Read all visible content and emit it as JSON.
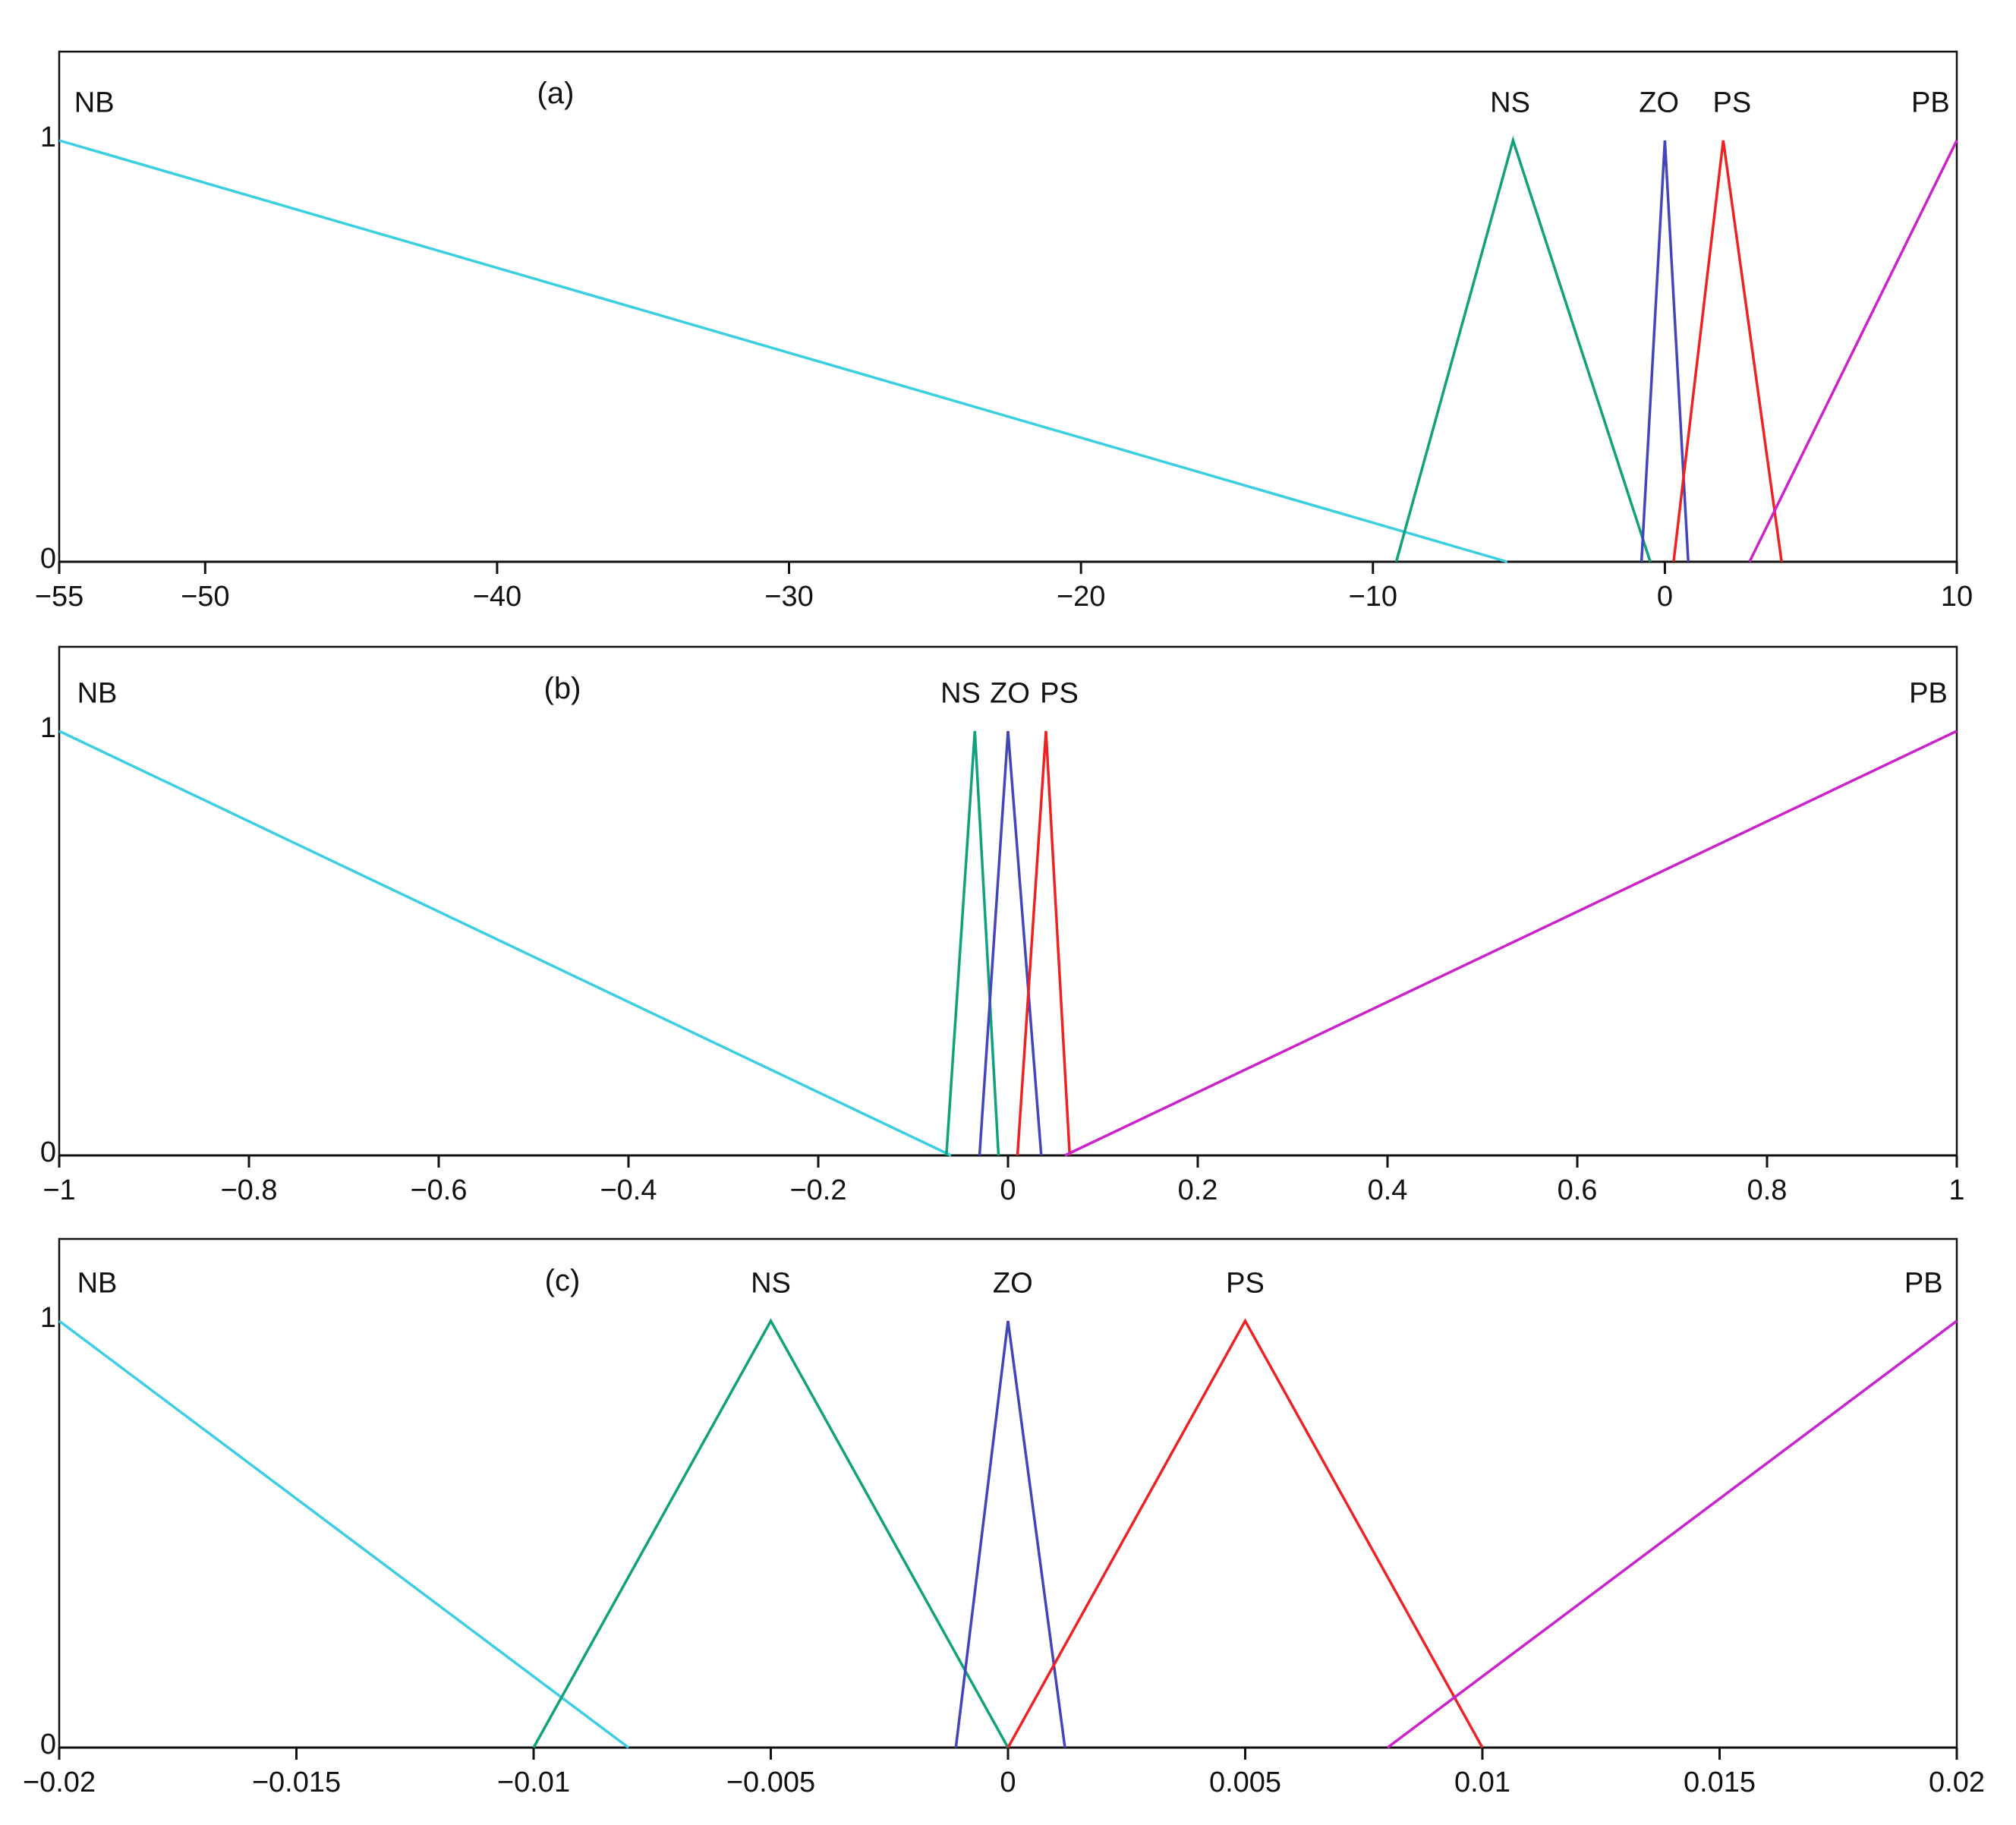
{
  "chart_data": [
    {
      "type": "line",
      "panel_label": "(a)",
      "xlim": [
        -55,
        10
      ],
      "ylim": [
        0,
        1
      ],
      "x_ticks": [
        -55,
        -50,
        -40,
        -30,
        -20,
        -10,
        0,
        10
      ],
      "x_tick_labels": [
        "−55",
        "−50",
        "−40",
        "−30",
        "−20",
        "−10",
        "0",
        "10"
      ],
      "y_ticks": [
        0,
        1
      ],
      "y_tick_labels": [
        "0",
        "1"
      ],
      "grid": false,
      "series": [
        {
          "name": "NB",
          "color": "#3ccfe0",
          "points": [
            [
              -55,
              1
            ],
            [
              -5.4,
              0
            ]
          ],
          "label_at": [
            -53.8,
            1.06
          ]
        },
        {
          "name": "NS",
          "color": "#10a27a",
          "points": [
            [
              -9.2,
              0
            ],
            [
              -5.2,
              1
            ],
            [
              -0.5,
              0
            ]
          ],
          "label_at": [
            -5.3,
            1.06
          ]
        },
        {
          "name": "ZO",
          "color": "#4444bb",
          "points": [
            [
              -0.8,
              0
            ],
            [
              0,
              1
            ],
            [
              0.8,
              0
            ]
          ],
          "label_at": [
            -0.2,
            1.06
          ]
        },
        {
          "name": "PS",
          "color": "#ee2222",
          "points": [
            [
              0.3,
              0
            ],
            [
              2,
              1
            ],
            [
              4,
              0
            ]
          ],
          "label_at": [
            2.3,
            1.06
          ]
        },
        {
          "name": "PB",
          "color": "#cc22cc",
          "points": [
            [
              2.9,
              0
            ],
            [
              10,
              1
            ]
          ],
          "label_at": [
            9.1,
            1.06
          ]
        }
      ]
    },
    {
      "type": "line",
      "panel_label": "(b)",
      "xlim": [
        -1,
        1
      ],
      "ylim": [
        0,
        1
      ],
      "x_ticks": [
        -1,
        -0.8,
        -0.6,
        -0.4,
        -0.2,
        0,
        0.2,
        0.4,
        0.6,
        0.8,
        1
      ],
      "x_tick_labels": [
        "−1",
        "−0.8",
        "−0.6",
        "−0.4",
        "−0.2",
        "0",
        "0.2",
        "0.4",
        "0.6",
        "0.8",
        "1"
      ],
      "y_ticks": [
        0,
        1
      ],
      "y_tick_labels": [
        "0",
        "1"
      ],
      "grid": false,
      "series": [
        {
          "name": "NB",
          "color": "#3ccfe0",
          "points": [
            [
              -1,
              1
            ],
            [
              -0.06,
              0
            ]
          ],
          "label_at": [
            -0.96,
            1.06
          ]
        },
        {
          "name": "NS",
          "color": "#10a27a",
          "points": [
            [
              -0.065,
              0
            ],
            [
              -0.035,
              1
            ],
            [
              -0.01,
              0
            ]
          ],
          "label_at": [
            -0.05,
            1.06
          ]
        },
        {
          "name": "ZO",
          "color": "#4444bb",
          "points": [
            [
              -0.03,
              0
            ],
            [
              0,
              1
            ],
            [
              0.035,
              0
            ]
          ],
          "label_at": [
            0.002,
            1.06
          ]
        },
        {
          "name": "PS",
          "color": "#ee2222",
          "points": [
            [
              0.01,
              0
            ],
            [
              0.04,
              1
            ],
            [
              0.065,
              0
            ]
          ],
          "label_at": [
            0.054,
            1.06
          ]
        },
        {
          "name": "PB",
          "color": "#cc22cc",
          "points": [
            [
              0.06,
              0
            ],
            [
              1,
              1
            ]
          ],
          "label_at": [
            0.97,
            1.06
          ]
        }
      ]
    },
    {
      "type": "line",
      "panel_label": "(c)",
      "xlim": [
        -0.02,
        0.02
      ],
      "ylim": [
        0,
        1
      ],
      "x_ticks": [
        -0.02,
        -0.015,
        -0.01,
        -0.005,
        0,
        0.005,
        0.01,
        0.015,
        0.02
      ],
      "x_tick_labels": [
        "−0.02",
        "−0.015",
        "−0.01",
        "−0.005",
        "0",
        "0.005",
        "0.01",
        "0.015",
        "0.02"
      ],
      "y_ticks": [
        0,
        1
      ],
      "y_tick_labels": [
        "0",
        "1"
      ],
      "grid": false,
      "series": [
        {
          "name": "NB",
          "color": "#3ccfe0",
          "points": [
            [
              -0.02,
              1
            ],
            [
              -0.008,
              0
            ]
          ],
          "label_at": [
            -0.0192,
            1.06
          ]
        },
        {
          "name": "NS",
          "color": "#10a27a",
          "points": [
            [
              -0.01,
              0
            ],
            [
              -0.005,
              1
            ],
            [
              0,
              0
            ]
          ],
          "label_at": [
            -0.005,
            1.06
          ]
        },
        {
          "name": "ZO",
          "color": "#4444bb",
          "points": [
            [
              -0.0011,
              0
            ],
            [
              0,
              1
            ],
            [
              0.0012,
              0
            ]
          ],
          "label_at": [
            0.0001,
            1.06
          ]
        },
        {
          "name": "PS",
          "color": "#ee2222",
          "points": [
            [
              0,
              0
            ],
            [
              0.005,
              1
            ],
            [
              0.01,
              0
            ]
          ],
          "label_at": [
            0.005,
            1.06
          ]
        },
        {
          "name": "PB",
          "color": "#cc22cc",
          "points": [
            [
              0.008,
              0
            ],
            [
              0.02,
              1
            ]
          ],
          "label_at": [
            0.0193,
            1.06
          ]
        }
      ]
    }
  ]
}
